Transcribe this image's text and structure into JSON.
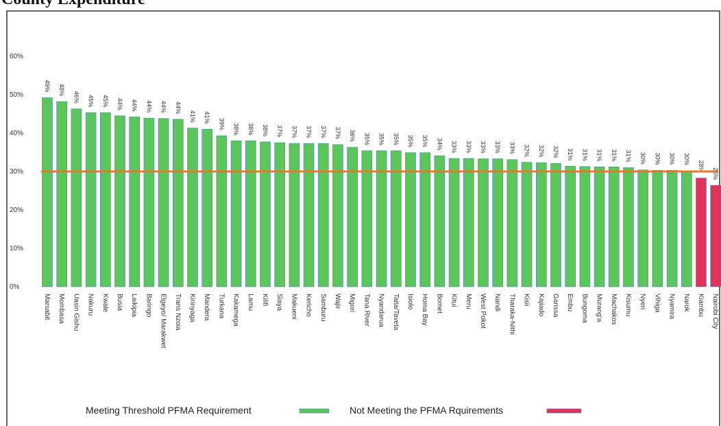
{
  "chart_data": {
    "type": "bar",
    "title": "County Expenditure",
    "categories": [
      "Marsabit",
      "Mombasa",
      "Uasin Gishu",
      "Nakuru",
      "Kwale",
      "Busia",
      "Laikipia",
      "Baringo",
      "Elgeyo/ Marakwet",
      "Trans Nzoia",
      "Kirinyaga",
      "Mandera",
      "Turkana",
      "Kakamega",
      "Lamu",
      "Kilifi",
      "Siaya",
      "Makueni",
      "Kericho",
      "Samburu",
      "Wajir",
      "Migori",
      "Tana River",
      "Nyandarua",
      "Taita/Taveta",
      "Isiolo",
      "Homa Bay",
      "Bomet",
      "Kitui",
      "Meru",
      "West Pokot",
      "Nandi",
      "Tharaka-Nithi",
      "Kisii",
      "Kajiado",
      "Garissa",
      "Embu",
      "Bungoma",
      "Murang'a",
      "Machakos",
      "Kisumu",
      "Nyeri",
      "Vihiga",
      "Nyamira",
      "Narok",
      "Kiambu",
      "Nairobi City"
    ],
    "series": [
      {
        "name": "Meeting Threshold PFMA Requirement",
        "color": "#5cc55c",
        "values": [
          49.2,
          48.2,
          46.3,
          45.3,
          45.3,
          44.5,
          44.2,
          43.9,
          43.8,
          43.6,
          41.3,
          41.0,
          39.3,
          38.0,
          38.0,
          37.7,
          37.5,
          37.3,
          37.3,
          37.3,
          37.0,
          36.3,
          35.4,
          35.4,
          35.4,
          34.9,
          34.9,
          34.1,
          33.4,
          33.4,
          33.3,
          33.3,
          33.1,
          32.4,
          32.3,
          32.1,
          31.4,
          31.3,
          31.2,
          31.2,
          31.0,
          30.4,
          30.3,
          30.3,
          30.2,
          null,
          null
        ],
        "value_labels": [
          "49%",
          "48%",
          "46%",
          "45%",
          "45%",
          "44%",
          "44%",
          "44%",
          "44%",
          "44%",
          "41%",
          "41%",
          "39%",
          "38%",
          "38%",
          "38%",
          "37%",
          "37%",
          "37%",
          "37%",
          "37%",
          "36%",
          "35%",
          "35%",
          "35%",
          "35%",
          "35%",
          "34%",
          "33%",
          "33%",
          "33%",
          "33%",
          "33%",
          "32%",
          "32%",
          "32%",
          "31%",
          "31%",
          "31%",
          "31%",
          "31%",
          "30%",
          "30%",
          "30%",
          "30%",
          null,
          null
        ]
      },
      {
        "name": "Not Meeting the PFMA Rquirements",
        "color": "#e0325a",
        "values": [
          null,
          null,
          null,
          null,
          null,
          null,
          null,
          null,
          null,
          null,
          null,
          null,
          null,
          null,
          null,
          null,
          null,
          null,
          null,
          null,
          null,
          null,
          null,
          null,
          null,
          null,
          null,
          null,
          null,
          null,
          null,
          null,
          null,
          null,
          null,
          null,
          null,
          null,
          null,
          null,
          null,
          null,
          null,
          null,
          null,
          28.3,
          26.4
        ],
        "value_labels": [
          null,
          null,
          null,
          null,
          null,
          null,
          null,
          null,
          null,
          null,
          null,
          null,
          null,
          null,
          null,
          null,
          null,
          null,
          null,
          null,
          null,
          null,
          null,
          null,
          null,
          null,
          null,
          null,
          null,
          null,
          null,
          null,
          null,
          null,
          null,
          null,
          null,
          null,
          null,
          null,
          null,
          null,
          null,
          null,
          null,
          "28%",
          "26%"
        ]
      }
    ],
    "reference_line": {
      "value": 30,
      "color": "#e8772e"
    },
    "ylim": [
      0,
      60
    ],
    "yticks": [
      {
        "value": 0,
        "label": "0%"
      },
      {
        "value": 10,
        "label": "10%"
      },
      {
        "value": 20,
        "label": "20%"
      },
      {
        "value": 30,
        "label": "30%"
      },
      {
        "value": 40,
        "label": "40%"
      },
      {
        "value": 50,
        "label": "50%"
      },
      {
        "value": 60,
        "label": "60%"
      }
    ],
    "grid": false
  }
}
